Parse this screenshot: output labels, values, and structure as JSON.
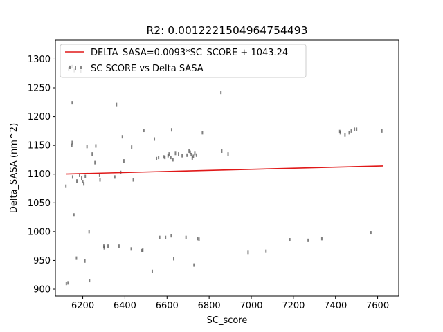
{
  "chart_data": {
    "type": "scatter",
    "title": "R2: 0.0012221504964754493",
    "xlabel": "SC_score",
    "ylabel": "Delta_SASA (nm^2)",
    "xlim": [
      6070,
      7700
    ],
    "ylim": [
      888,
      1333
    ],
    "xticks": [
      6200,
      6400,
      6600,
      6800,
      7000,
      7200,
      7400,
      7600
    ],
    "yticks": [
      900,
      950,
      1000,
      1050,
      1100,
      1150,
      1200,
      1250,
      1300
    ],
    "grid": false,
    "legend_position": "upper-left",
    "colors": {
      "fit_line": "#e01818",
      "points": "#555555",
      "axes": "#000000"
    },
    "series": [
      {
        "name": "DELTA_SASA=0.0093*SC_SCORE + 1043.24",
        "kind": "line",
        "x": [
          6120,
          7625
        ],
        "y": [
          1100.2,
          1114.2
        ]
      },
      {
        "name": "SC SCORE vs Delta SASA",
        "kind": "scatter",
        "points": [
          [
            6120,
            1079
          ],
          [
            6122,
            910
          ],
          [
            6130,
            911
          ],
          [
            6133,
            1283
          ],
          [
            6138,
            1286
          ],
          [
            6150,
            1287
          ],
          [
            6160,
            1280
          ],
          [
            6150,
            1155
          ],
          [
            6148,
            1150
          ],
          [
            6150,
            1224
          ],
          [
            6152,
            1095
          ],
          [
            6158,
            1029
          ],
          [
            6170,
            954
          ],
          [
            6172,
            1088
          ],
          [
            6185,
            1098
          ],
          [
            6190,
            1279
          ],
          [
            6195,
            1093
          ],
          [
            6200,
            1087
          ],
          [
            6205,
            1083
          ],
          [
            6210,
            949
          ],
          [
            6212,
            1096
          ],
          [
            6220,
            1148
          ],
          [
            6230,
            1000
          ],
          [
            6232,
            915
          ],
          [
            6245,
            1135
          ],
          [
            6258,
            1120
          ],
          [
            6262,
            1149
          ],
          [
            6280,
            1098
          ],
          [
            6282,
            1090
          ],
          [
            6300,
            975
          ],
          [
            6302,
            972
          ],
          [
            6320,
            975
          ],
          [
            6352,
            1095
          ],
          [
            6360,
            1221
          ],
          [
            6372,
            975
          ],
          [
            6380,
            1103
          ],
          [
            6388,
            1165
          ],
          [
            6395,
            1123
          ],
          [
            6430,
            970
          ],
          [
            6432,
            1147
          ],
          [
            6440,
            1090
          ],
          [
            6480,
            967
          ],
          [
            6485,
            968
          ],
          [
            6490,
            1176
          ],
          [
            6530,
            931
          ],
          [
            6540,
            1161
          ],
          [
            6550,
            1127
          ],
          [
            6560,
            1129
          ],
          [
            6565,
            990
          ],
          [
            6585,
            1130
          ],
          [
            6590,
            1129
          ],
          [
            6593,
            990
          ],
          [
            6605,
            1132
          ],
          [
            6610,
            1135
          ],
          [
            6618,
            1129
          ],
          [
            6620,
            993
          ],
          [
            6622,
            1177
          ],
          [
            6628,
            1125
          ],
          [
            6632,
            953
          ],
          [
            6640,
            1136
          ],
          [
            6655,
            1135
          ],
          [
            6672,
            1132
          ],
          [
            6690,
            990
          ],
          [
            6695,
            1133
          ],
          [
            6705,
            1140
          ],
          [
            6710,
            1138
          ],
          [
            6715,
            1134
          ],
          [
            6720,
            1128
          ],
          [
            6725,
            1131
          ],
          [
            6728,
            942
          ],
          [
            6732,
            1136
          ],
          [
            6740,
            1133
          ],
          [
            6745,
            988
          ],
          [
            6752,
            987
          ],
          [
            6768,
            1172
          ],
          [
            6856,
            1242
          ],
          [
            6860,
            1140
          ],
          [
            6890,
            1135
          ],
          [
            6985,
            964
          ],
          [
            7070,
            966
          ],
          [
            7183,
            986
          ],
          [
            7270,
            985
          ],
          [
            7335,
            988
          ],
          [
            7420,
            1174
          ],
          [
            7423,
            1172
          ],
          [
            7445,
            1168
          ],
          [
            7465,
            1172
          ],
          [
            7475,
            1175
          ],
          [
            7490,
            1178
          ],
          [
            7500,
            1178
          ],
          [
            7568,
            998
          ],
          [
            7620,
            1175
          ]
        ]
      }
    ]
  }
}
